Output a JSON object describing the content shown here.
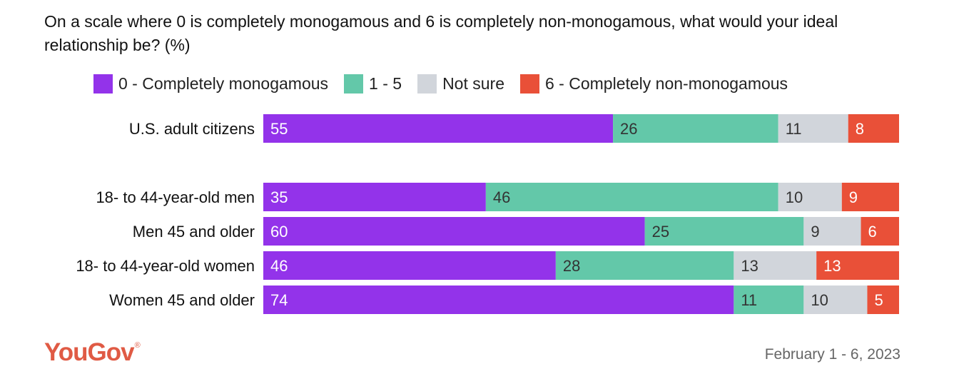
{
  "chart_data": {
    "type": "bar",
    "orientation": "horizontal",
    "stacked": true,
    "title": "On a scale where 0 is completely monogamous and 6 is completely non-monogamous, what would your ideal relationship be? (%)",
    "categories": [
      "U.S. adult citizens",
      "18- to 44-year-old men",
      "Men 45 and older",
      "18- to 44-year-old women",
      "Women 45 and older"
    ],
    "series": [
      {
        "name": "0 - Completely monogamous",
        "color": "#9333ea",
        "label_color": "#ffffff",
        "values": [
          55,
          35,
          60,
          46,
          74
        ]
      },
      {
        "name": "1 - 5",
        "color": "#63c8a9",
        "label_color": "#333333",
        "values": [
          26,
          46,
          25,
          28,
          11
        ]
      },
      {
        "name": "Not sure",
        "color": "#d1d5db",
        "label_color": "#333333",
        "values": [
          11,
          10,
          9,
          13,
          10
        ]
      },
      {
        "name": "6 - Completely non-monogamous",
        "color": "#e95038",
        "label_color": "#ffffff",
        "values": [
          8,
          9,
          6,
          13,
          5
        ]
      }
    ],
    "xlim": [
      0,
      100
    ],
    "legend": "top",
    "grid": false
  },
  "brand": {
    "logo": "YouGov",
    "logo_mark": "®"
  },
  "footer": {
    "date": "February 1 - 6, 2023"
  }
}
